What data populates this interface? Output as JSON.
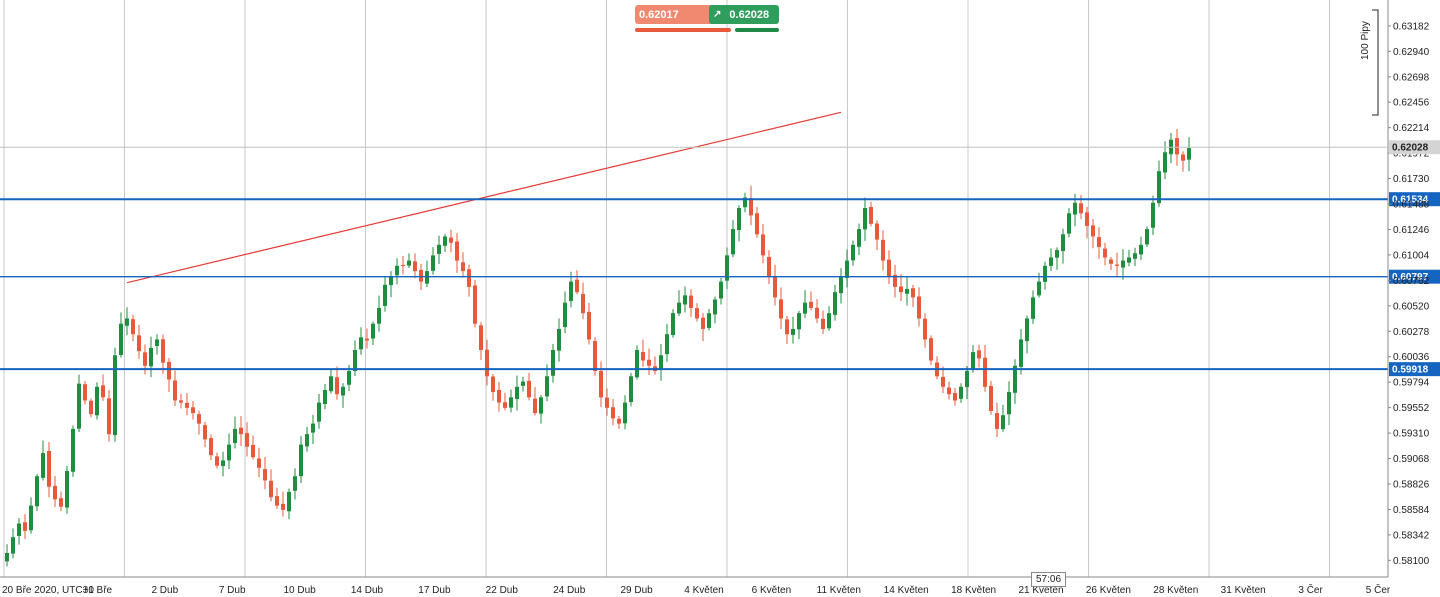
{
  "widgets": {
    "sell_price": "0.62017",
    "buy_price": "0.62028",
    "sell_arrow": "↘",
    "buy_arrow": "↗",
    "countdown": "57:06",
    "pips_label": "100 Pipy"
  },
  "chart_data": {
    "type": "candlestick",
    "x_tick_labels": [
      "20 Bře 2020, UTC+0",
      "31 Bře",
      "2 Dub",
      "7 Dub",
      "10 Dub",
      "14 Dub",
      "17 Dub",
      "22 Dub",
      "24 Dub",
      "29 Dub",
      "4 Květen",
      "6 Květen",
      "11 Květen",
      "14 Květen",
      "18 Květen",
      "21 Květen",
      "26 Květen",
      "28 Květen",
      "31 Květen",
      "3 Čer",
      "5 Čer"
    ],
    "y_tick_labels": [
      "0.63182",
      "0.62940",
      "0.62698",
      "0.62456",
      "0.62214",
      "0.61972",
      "0.61730",
      "0.61488",
      "0.61246",
      "0.61004",
      "0.60762",
      "0.60520",
      "0.60278",
      "0.60036",
      "0.59794",
      "0.59552",
      "0.59310",
      "0.59068",
      "0.58826",
      "0.58584",
      "0.58342",
      "0.58100"
    ],
    "y_range": [
      0.5797,
      0.6339
    ],
    "current_price": "0.62028",
    "horizontal_levels": [
      {
        "value": 0.61534,
        "label": "0.61534"
      },
      {
        "value": 0.60797,
        "label": "0.60797"
      },
      {
        "value": 0.59918,
        "label": "0.59918"
      }
    ],
    "trendline": {
      "start_index": 20,
      "start_value": 0.6074,
      "end_index": 139,
      "end_value": 0.6236
    },
    "colors": {
      "up": "#1e8e3e",
      "down": "#e8583b",
      "levels": "#1565c0",
      "trendline": "#e53935",
      "grid": "#c8c8c8"
    },
    "closes": [
      0.5817,
      0.5832,
      0.5845,
      0.5838,
      0.5862,
      0.589,
      0.5912,
      0.588,
      0.5868,
      0.5861,
      0.5895,
      0.5935,
      0.5978,
      0.5962,
      0.5949,
      0.5975,
      0.5965,
      0.593,
      0.6005,
      0.6035,
      0.604,
      0.6025,
      0.6009,
      0.5995,
      0.6012,
      0.602,
      0.5998,
      0.5982,
      0.5962,
      0.596,
      0.5955,
      0.595,
      0.594,
      0.5925,
      0.591,
      0.59,
      0.5905,
      0.592,
      0.5935,
      0.593,
      0.5918,
      0.5908,
      0.5898,
      0.5886,
      0.587,
      0.5862,
      0.5858,
      0.5875,
      0.589,
      0.592,
      0.593,
      0.594,
      0.596,
      0.5972,
      0.5985,
      0.5968,
      0.5975,
      0.599,
      0.601,
      0.6022,
      0.6019,
      0.6035,
      0.605,
      0.6072,
      0.608,
      0.609,
      0.609,
      0.6095,
      0.6085,
      0.6075,
      0.6085,
      0.61,
      0.611,
      0.6118,
      0.6112,
      0.6095,
      0.6085,
      0.607,
      0.6035,
      0.601,
      0.5985,
      0.597,
      0.596,
      0.5955,
      0.5965,
      0.5975,
      0.598,
      0.5965,
      0.595,
      0.5965,
      0.5985,
      0.601,
      0.603,
      0.6055,
      0.6075,
      0.6065,
      0.6045,
      0.602,
      0.599,
      0.5965,
      0.5955,
      0.5945,
      0.594,
      0.596,
      0.5985,
      0.601,
      0.6,
      0.5995,
      0.599,
      0.6005,
      0.6025,
      0.6045,
      0.6055,
      0.6062,
      0.605,
      0.604,
      0.603,
      0.6045,
      0.6058,
      0.6075,
      0.61,
      0.6125,
      0.6145,
      0.6155,
      0.6138,
      0.612,
      0.61,
      0.608,
      0.606,
      0.604,
      0.6025,
      0.603,
      0.6045,
      0.6055,
      0.605,
      0.604,
      0.603,
      0.6045,
      0.6065,
      0.608,
      0.6095,
      0.611,
      0.6125,
      0.6145,
      0.613,
      0.6115,
      0.6095,
      0.608,
      0.607,
      0.6065,
      0.6068,
      0.606,
      0.604,
      0.602,
      0.6,
      0.5985,
      0.5975,
      0.5968,
      0.5962,
      0.5975,
      0.599,
      0.6008,
      0.6002,
      0.5975,
      0.5952,
      0.5935,
      0.5948,
      0.597,
      0.5995,
      0.602,
      0.604,
      0.606,
      0.6075,
      0.609,
      0.6098,
      0.6105,
      0.612,
      0.614,
      0.615,
      0.614,
      0.6128,
      0.6118,
      0.6108,
      0.6098,
      0.6092,
      0.609,
      0.6095,
      0.6098,
      0.6102,
      0.611,
      0.6125,
      0.615,
      0.618,
      0.6198,
      0.621,
      0.6196,
      0.619,
      0.6202
    ]
  }
}
